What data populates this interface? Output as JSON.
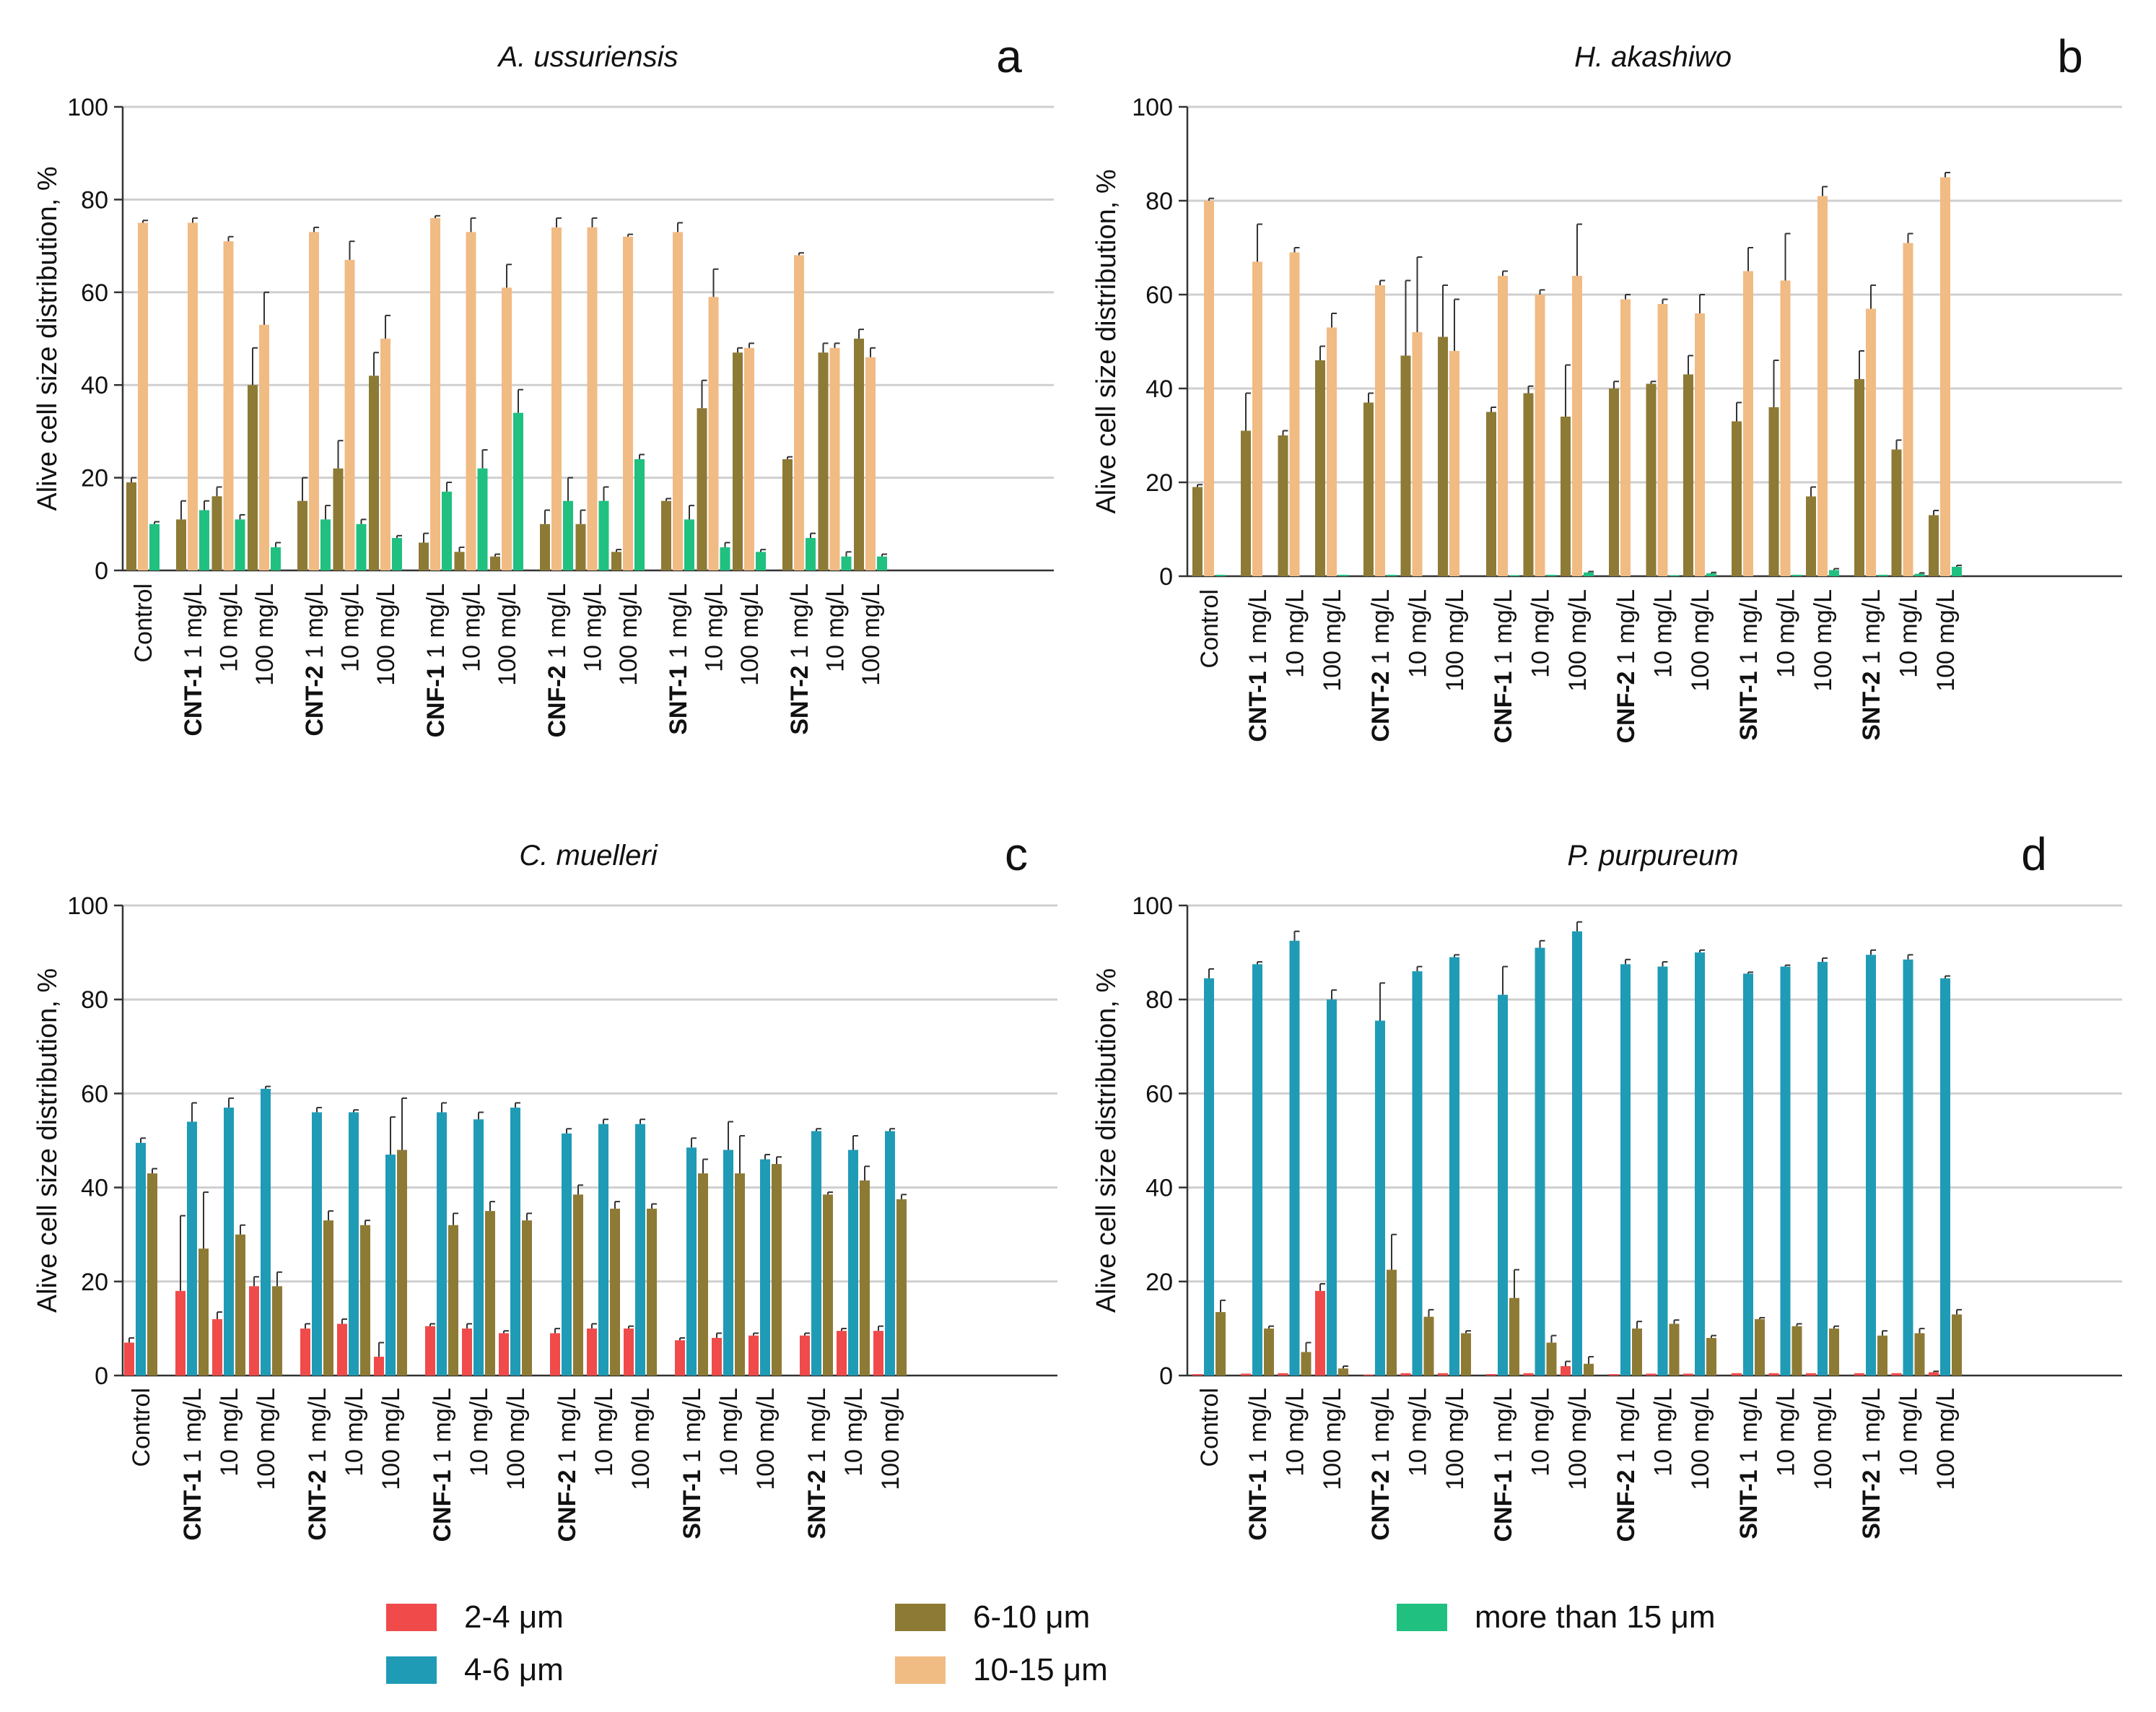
{
  "legend": {
    "items": [
      {
        "label": "2-4 μm",
        "color": "#f04a4a",
        "key": "s24"
      },
      {
        "label": "4-6 μm",
        "color": "#1f9bb6",
        "key": "s46"
      },
      {
        "label": "6-10 μm",
        "color": "#8d7a35",
        "key": "s610"
      },
      {
        "label": "10-15 μm",
        "color": "#f1bb84",
        "key": "s1015"
      },
      {
        "label": "more than 15 μm",
        "color": "#20c080",
        "key": "s15"
      }
    ]
  },
  "chart_data": [
    {
      "type": "bar",
      "panel_letter": "a",
      "title": "A. ussuriensis",
      "ylabel": "Alive cell size distribution, %",
      "ylim": [
        0,
        100
      ],
      "yticks": [
        "0",
        "20",
        "40",
        "60",
        "80",
        "100"
      ],
      "categories": [
        {
          "group": "",
          "dose": "Control"
        },
        {
          "group": "CNT-1",
          "dose": "1 mg/L"
        },
        {
          "group": "",
          "dose": "10 mg/L"
        },
        {
          "group": "",
          "dose": "100 mg/L"
        },
        {
          "group": "CNT-2",
          "dose": "1 mg/L"
        },
        {
          "group": "",
          "dose": "10 mg/L"
        },
        {
          "group": "",
          "dose": "100 mg/L"
        },
        {
          "group": "CNF-1",
          "dose": "1 mg/L"
        },
        {
          "group": "",
          "dose": "10 mg/L"
        },
        {
          "group": "",
          "dose": "100 mg/L"
        },
        {
          "group": "CNF-2",
          "dose": "1 mg/L"
        },
        {
          "group": "",
          "dose": "10 mg/L"
        },
        {
          "group": "",
          "dose": "100 mg/L"
        },
        {
          "group": "SNT-1",
          "dose": "1 mg/L"
        },
        {
          "group": "",
          "dose": "10 mg/L"
        },
        {
          "group": "",
          "dose": "100 mg/L"
        },
        {
          "group": "SNT-2",
          "dose": "1 mg/L"
        },
        {
          "group": "",
          "dose": "10 mg/L"
        },
        {
          "group": "",
          "dose": "100 mg/L"
        }
      ],
      "series": [
        {
          "key": "s610",
          "name": "6-10 μm",
          "values": [
            19,
            11,
            16,
            40,
            15,
            22,
            42,
            6,
            4,
            3,
            10,
            10,
            4,
            15,
            35,
            47,
            24,
            47,
            50
          ],
          "errors": [
            1,
            4,
            2,
            8,
            5,
            6,
            5,
            2,
            1,
            0.5,
            3,
            3,
            0.5,
            0.5,
            6,
            1,
            0.5,
            2,
            2
          ]
        },
        {
          "key": "s1015",
          "name": "10-15 μm",
          "values": [
            75,
            75,
            71,
            53,
            73,
            67,
            50,
            76,
            73,
            61,
            74,
            74,
            72,
            73,
            59,
            48,
            68,
            48,
            46
          ],
          "errors": [
            0.5,
            1,
            1,
            7,
            1,
            4,
            5,
            0.5,
            3,
            5,
            2,
            2,
            0.5,
            2,
            6,
            1,
            0.5,
            1,
            2
          ]
        },
        {
          "key": "s15",
          "name": "more than 15 μm",
          "values": [
            10,
            13,
            11,
            5,
            11,
            10,
            7,
            17,
            22,
            34,
            15,
            15,
            24,
            11,
            5,
            4,
            7,
            3,
            3
          ],
          "errors": [
            0.5,
            2,
            1,
            1,
            3,
            1,
            0.5,
            2,
            4,
            5,
            5,
            3,
            1,
            3,
            1,
            0.5,
            1,
            1,
            0.5
          ]
        }
      ]
    },
    {
      "type": "bar",
      "panel_letter": "b",
      "title": "H. akashiwo",
      "ylabel": "Alive cell size distribution, %",
      "ylim": [
        0,
        100
      ],
      "yticks": [
        "0",
        "20",
        "40",
        "60",
        "80",
        "100"
      ],
      "categories": [
        {
          "group": "",
          "dose": "Control"
        },
        {
          "group": "CNT-1",
          "dose": "1 mg/L"
        },
        {
          "group": "",
          "dose": "10 mg/L"
        },
        {
          "group": "",
          "dose": "100 mg/L"
        },
        {
          "group": "CNT-2",
          "dose": "1 mg/L"
        },
        {
          "group": "",
          "dose": "10 mg/L"
        },
        {
          "group": "",
          "dose": "100 mg/L"
        },
        {
          "group": "CNF-1",
          "dose": "1 mg/L"
        },
        {
          "group": "",
          "dose": "10 mg/L"
        },
        {
          "group": "",
          "dose": "100 mg/L"
        },
        {
          "group": "CNF-2",
          "dose": "1 mg/L"
        },
        {
          "group": "",
          "dose": "10 mg/L"
        },
        {
          "group": "",
          "dose": "100 mg/L"
        },
        {
          "group": "SNT-1",
          "dose": "1 mg/L"
        },
        {
          "group": "",
          "dose": "10 mg/L"
        },
        {
          "group": "",
          "dose": "100 mg/L"
        },
        {
          "group": "SNT-2",
          "dose": "1 mg/L"
        },
        {
          "group": "",
          "dose": "10 mg/L"
        },
        {
          "group": "",
          "dose": "100 mg/L"
        }
      ],
      "series": [
        {
          "key": "s610",
          "name": "6-10 μm",
          "values": [
            19,
            31,
            30,
            46,
            37,
            47,
            51,
            35,
            39,
            34,
            40,
            41,
            43,
            33,
            36,
            17,
            42,
            27,
            13
          ],
          "errors": [
            0.5,
            8,
            1,
            3,
            2,
            16,
            11,
            1,
            1.5,
            11,
            1.5,
            0.5,
            4,
            4,
            10,
            2,
            6,
            2,
            1
          ]
        },
        {
          "key": "s1015",
          "name": "10-15 μm",
          "values": [
            80,
            67,
            69,
            53,
            62,
            52,
            48,
            64,
            60,
            64,
            59,
            58,
            56,
            65,
            63,
            81,
            57,
            71,
            85
          ],
          "errors": [
            0.5,
            8,
            1,
            3,
            1,
            16,
            11,
            1,
            1,
            11,
            1,
            1,
            4,
            5,
            10,
            2,
            5,
            2,
            1
          ]
        },
        {
          "key": "s15",
          "name": "more than 15 μm",
          "values": [
            0.3,
            0,
            0,
            0.3,
            0.3,
            0,
            0,
            0.2,
            0.3,
            0.8,
            0,
            0.2,
            0.6,
            0,
            0.3,
            1.3,
            0.3,
            0.5,
            2
          ],
          "errors": [
            0,
            0,
            0,
            0,
            0,
            0,
            0,
            0,
            0,
            0.2,
            0,
            0,
            0.2,
            0,
            0,
            0.3,
            0,
            0.2,
            0.3
          ]
        }
      ]
    },
    {
      "type": "bar",
      "panel_letter": "c",
      "title": "C. muelleri",
      "ylabel": "Alive cell size distribution, %",
      "ylim": [
        0,
        100
      ],
      "yticks": [
        "0",
        "20",
        "40",
        "60",
        "80",
        "100"
      ],
      "categories": [
        {
          "group": "",
          "dose": "Control"
        },
        {
          "group": "CNT-1",
          "dose": "1 mg/L"
        },
        {
          "group": "",
          "dose": "10 mg/L"
        },
        {
          "group": "",
          "dose": "100 mg/L"
        },
        {
          "group": "CNT-2",
          "dose": "1 mg/L"
        },
        {
          "group": "",
          "dose": "10 mg/L"
        },
        {
          "group": "",
          "dose": "100 mg/L"
        },
        {
          "group": "CNF-1",
          "dose": "1 mg/L"
        },
        {
          "group": "",
          "dose": "10 mg/L"
        },
        {
          "group": "",
          "dose": "100 mg/L"
        },
        {
          "group": "CNF-2",
          "dose": "1 mg/L"
        },
        {
          "group": "",
          "dose": "10 mg/L"
        },
        {
          "group": "",
          "dose": "100 mg/L"
        },
        {
          "group": "SNT-1",
          "dose": "1 mg/L"
        },
        {
          "group": "",
          "dose": "10 mg/L"
        },
        {
          "group": "",
          "dose": "100 mg/L"
        },
        {
          "group": "SNT-2",
          "dose": "1 mg/L"
        },
        {
          "group": "",
          "dose": "10 mg/L"
        },
        {
          "group": "",
          "dose": "100 mg/L"
        }
      ],
      "series": [
        {
          "key": "s24",
          "name": "2-4 μm",
          "values": [
            7,
            18,
            12,
            19,
            10,
            11,
            4,
            10.5,
            10,
            9,
            9,
            10,
            10,
            7.5,
            8,
            8.5,
            8.5,
            9.5,
            9.5
          ],
          "errors": [
            1,
            16,
            1.5,
            2,
            1,
            1,
            3,
            0.5,
            1,
            0.5,
            1,
            1,
            0.5,
            0.5,
            1,
            0.5,
            0.5,
            0.5,
            1
          ]
        },
        {
          "key": "s46",
          "name": "4-6 μm",
          "values": [
            49.5,
            54,
            57,
            61,
            56,
            56,
            47,
            56,
            54.5,
            57,
            51.5,
            53.5,
            53.5,
            48.5,
            48,
            46,
            52,
            48,
            52
          ],
          "errors": [
            1,
            4,
            2,
            0.5,
            1,
            0.5,
            8,
            2,
            1.5,
            1,
            1,
            1,
            1,
            2,
            6,
            1,
            0.5,
            3,
            0.5
          ]
        },
        {
          "key": "s610",
          "name": "6-10 μm",
          "values": [
            43,
            27,
            30,
            19,
            33,
            32,
            48,
            32,
            35,
            33,
            38.5,
            35.5,
            35.5,
            43,
            43,
            45,
            38.5,
            41.5,
            37.5
          ],
          "errors": [
            1,
            12,
            2,
            3,
            2,
            1,
            11,
            2.5,
            2,
            1.5,
            2,
            1.5,
            1,
            3,
            8,
            1.5,
            0.5,
            3,
            1
          ]
        }
      ]
    },
    {
      "type": "bar",
      "panel_letter": "d",
      "title": "P. purpureum",
      "ylabel": "Alive cell size distribution, %",
      "ylim": [
        0,
        100
      ],
      "yticks": [
        "0",
        "20",
        "40",
        "60",
        "80",
        "100"
      ],
      "categories": [
        {
          "group": "",
          "dose": "Control"
        },
        {
          "group": "CNT-1",
          "dose": "1 mg/L"
        },
        {
          "group": "",
          "dose": "10 mg/L"
        },
        {
          "group": "",
          "dose": "100 mg/L"
        },
        {
          "group": "CNT-2",
          "dose": "1 mg/L"
        },
        {
          "group": "",
          "dose": "10 mg/L"
        },
        {
          "group": "",
          "dose": "100 mg/L"
        },
        {
          "group": "CNF-1",
          "dose": "1 mg/L"
        },
        {
          "group": "",
          "dose": "10 mg/L"
        },
        {
          "group": "",
          "dose": "100 mg/L"
        },
        {
          "group": "CNF-2",
          "dose": "1 mg/L"
        },
        {
          "group": "",
          "dose": "10 mg/L"
        },
        {
          "group": "",
          "dose": "100 mg/L"
        },
        {
          "group": "SNT-1",
          "dose": "1 mg/L"
        },
        {
          "group": "",
          "dose": "10 mg/L"
        },
        {
          "group": "",
          "dose": "100 mg/L"
        },
        {
          "group": "SNT-2",
          "dose": "1 mg/L"
        },
        {
          "group": "",
          "dose": "10 mg/L"
        },
        {
          "group": "",
          "dose": "100 mg/L"
        }
      ],
      "series": [
        {
          "key": "s24",
          "name": "2-4 μm",
          "values": [
            0.3,
            0.4,
            0.5,
            18,
            0.2,
            0.5,
            0.5,
            0.3,
            0.5,
            2,
            0.3,
            0.4,
            0.4,
            0.5,
            0.5,
            0.5,
            0.5,
            0.5,
            0.7
          ],
          "errors": [
            0,
            0,
            0,
            1.5,
            0,
            0,
            0,
            0,
            0,
            1,
            0,
            0,
            0,
            0,
            0,
            0,
            0,
            0,
            0.2
          ]
        },
        {
          "key": "s46",
          "name": "4-6 μm",
          "values": [
            84.5,
            87.5,
            92.5,
            80,
            75.5,
            86,
            89,
            81,
            91,
            94.5,
            87.5,
            87,
            90,
            85.5,
            87,
            88,
            89.5,
            88.5,
            84.5
          ],
          "errors": [
            2,
            0.5,
            2,
            2,
            8,
            1,
            0.5,
            6,
            1.5,
            2,
            1,
            1,
            0.5,
            0.3,
            0.3,
            0.8,
            1,
            1,
            0.5
          ]
        },
        {
          "key": "s610",
          "name": "6-10 μm",
          "values": [
            13.5,
            10,
            5,
            1.5,
            22.5,
            12.5,
            9,
            16.5,
            7,
            2.5,
            10,
            11,
            8,
            12,
            10.5,
            10,
            8.5,
            9,
            13
          ],
          "errors": [
            2.5,
            0.5,
            2,
            0.5,
            7.5,
            1.5,
            0.5,
            6,
            1.5,
            1.5,
            1.5,
            0.8,
            0.5,
            0.3,
            0.5,
            0.5,
            1,
            1,
            1
          ]
        }
      ]
    }
  ]
}
